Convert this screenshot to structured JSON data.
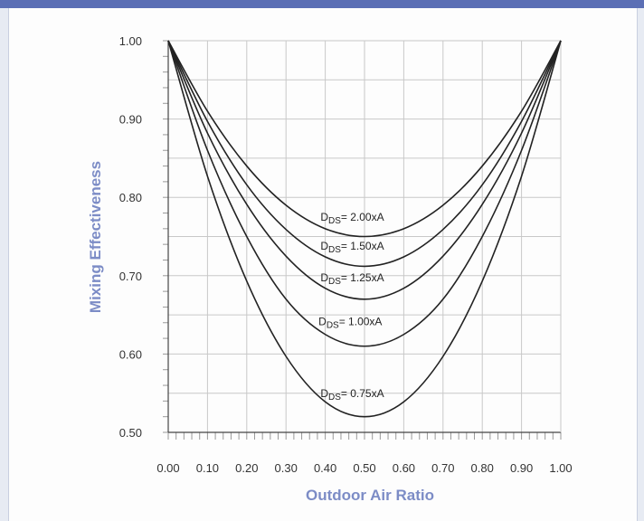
{
  "chart_data": {
    "type": "line",
    "title": "",
    "xlabel": "Outdoor Air Ratio",
    "ylabel": "Mixing Effectiveness",
    "xlim": [
      0.0,
      1.0
    ],
    "ylim": [
      0.5,
      1.0
    ],
    "x_ticks": [
      "0.00",
      "0.10",
      "0.20",
      "0.30",
      "0.40",
      "0.50",
      "0.60",
      "0.70",
      "0.80",
      "0.90",
      "1.00"
    ],
    "y_ticks": [
      "0.50",
      "0.60",
      "0.70",
      "0.80",
      "0.90",
      "1.00"
    ],
    "grid": true,
    "x": [
      0.0,
      0.1,
      0.2,
      0.3,
      0.4,
      0.5,
      0.6,
      0.7,
      0.8,
      0.9,
      1.0
    ],
    "series": [
      {
        "name": "2.00xA",
        "values": [
          1.0,
          0.91,
          0.84,
          0.79,
          0.76,
          0.75,
          0.76,
          0.79,
          0.84,
          0.91,
          1.0
        ]
      },
      {
        "name": "1.50xA",
        "values": [
          1.0,
          0.897,
          0.816,
          0.759,
          0.724,
          0.712,
          0.724,
          0.759,
          0.816,
          0.897,
          1.0
        ]
      },
      {
        "name": "1.25xA",
        "values": [
          1.0,
          0.882,
          0.791,
          0.725,
          0.684,
          0.67,
          0.684,
          0.725,
          0.791,
          0.882,
          1.0
        ]
      },
      {
        "name": "1.00xA",
        "values": [
          1.0,
          0.86,
          0.75,
          0.67,
          0.625,
          0.61,
          0.625,
          0.67,
          0.75,
          0.86,
          1.0
        ]
      },
      {
        "name": "0.75xA",
        "values": [
          1.0,
          0.827,
          0.693,
          0.597,
          0.539,
          0.52,
          0.539,
          0.597,
          0.693,
          0.827,
          1.0
        ]
      }
    ],
    "curve_labels": [
      {
        "series": "2.00xA",
        "prefix": "D",
        "subscript": "DS",
        "text": "= 2.00xA",
        "at": [
          0.48,
          0.77
        ]
      },
      {
        "series": "1.50xA",
        "prefix": "D",
        "subscript": "DS",
        "text": "= 1.50xA",
        "at": [
          0.48,
          0.733
        ]
      },
      {
        "series": "1.25xA",
        "prefix": "D",
        "subscript": "DS",
        "text": "= 1.25xA",
        "at": [
          0.48,
          0.693
        ]
      },
      {
        "series": "1.00xA",
        "prefix": "D",
        "subscript": "DS",
        "text": "= 1.00xA",
        "at": [
          0.475,
          0.637
        ]
      },
      {
        "series": "0.75xA",
        "prefix": "D",
        "subscript": "DS",
        "text": "= 0.75xA",
        "at": [
          0.48,
          0.545
        ]
      }
    ],
    "colors": {
      "curve": "#222222",
      "grid": "#c8c8c8",
      "axis_title": "#7c8cc6",
      "header": "#5b6fb5"
    }
  }
}
